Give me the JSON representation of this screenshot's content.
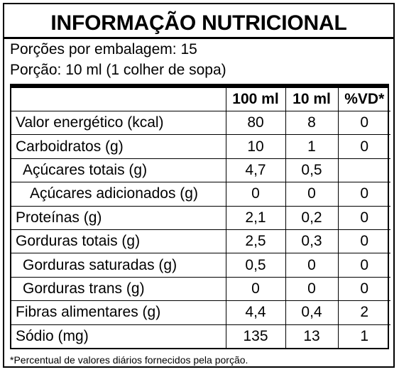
{
  "title": "INFORMAÇÃO NUTRICIONAL",
  "servings_per_package": "Porções por embalagem: 15",
  "serving_size": "Porção: 10 ml (1 colher de sopa)",
  "table": {
    "headers": [
      "",
      "100 ml",
      "10 ml",
      "%VD*"
    ],
    "rows": [
      {
        "name": "Valor energético (kcal)",
        "per100": "80",
        "perPortion": "8",
        "vd": "0"
      },
      {
        "name": "Carboidratos (g)",
        "per100": "10",
        "perPortion": "1",
        "vd": "0"
      },
      {
        "name": "Açúcares totais (g)",
        "per100": "4,7",
        "perPortion": "0,5",
        "vd": ""
      },
      {
        "name": "Açúcares adicionados (g)",
        "per100": "0",
        "perPortion": "0",
        "vd": "0"
      },
      {
        "name": "Proteínas (g)",
        "per100": "2,1",
        "perPortion": "0,2",
        "vd": "0"
      },
      {
        "name": "Gorduras totais (g)",
        "per100": "2,5",
        "perPortion": "0,3",
        "vd": "0"
      },
      {
        "name": "Gorduras saturadas (g)",
        "per100": "0,5",
        "perPortion": "0",
        "vd": "0"
      },
      {
        "name": "Gorduras trans (g)",
        "per100": "0",
        "perPortion": "0",
        "vd": "0"
      },
      {
        "name": "Fibras alimentares (g)",
        "per100": "4,4",
        "perPortion": "0,4",
        "vd": "2"
      },
      {
        "name": "Sódio (mg)",
        "per100": "135",
        "perPortion": "13",
        "vd": "1"
      }
    ]
  },
  "footnote": "*Percentual de valores diários fornecidos pela porção."
}
